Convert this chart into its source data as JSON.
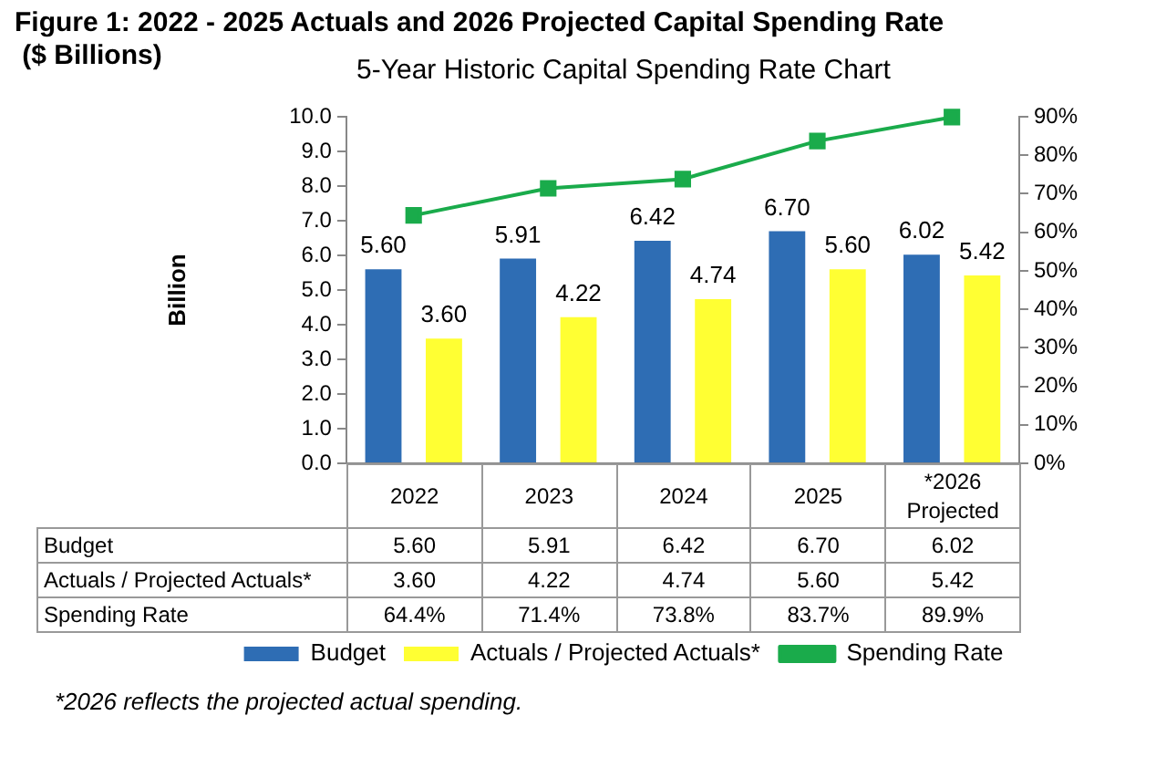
{
  "chart_data": {
    "type": "bar",
    "title": "Figure 1: 2022 - 2025 Actuals and 2026 Projected Capital Spending Rate\n ($ Billions)",
    "subtitle": "5-Year Historic Capital Spending Rate Chart",
    "ylabel": "Billion",
    "categories": [
      "2022",
      "2023",
      "2024",
      "2025",
      "*2026 Projected"
    ],
    "series": [
      {
        "name": "Budget",
        "color": "#2e6db4",
        "values": [
          5.6,
          5.91,
          6.42,
          6.7,
          6.02
        ],
        "value_labels": [
          "5.60",
          "5.91",
          "6.42",
          "6.70",
          "6.02"
        ]
      },
      {
        "name": "Actuals / Projected Actuals*",
        "color": "#ffff33",
        "values": [
          3.6,
          4.22,
          4.74,
          5.6,
          5.42
        ],
        "value_labels": [
          "3.60",
          "4.22",
          "4.74",
          "5.60",
          "5.42"
        ]
      },
      {
        "name": "Spending Rate",
        "type": "line",
        "axis": "y2",
        "color": "#1aab4b",
        "marker": "square",
        "values": [
          64.4,
          71.4,
          73.8,
          83.7,
          89.9
        ],
        "value_labels": [
          "64.4%",
          "71.4%",
          "73.8%",
          "83.7%",
          "89.9%"
        ]
      }
    ],
    "ylim": [
      0,
      10
    ],
    "yticks": [
      {
        "value": 0,
        "label": "0.0"
      },
      {
        "value": 1,
        "label": "1.0"
      },
      {
        "value": 2,
        "label": "2.0"
      },
      {
        "value": 3,
        "label": "3.0"
      },
      {
        "value": 4,
        "label": "4.0"
      },
      {
        "value": 5,
        "label": "5.0"
      },
      {
        "value": 6,
        "label": "6.0"
      },
      {
        "value": 7,
        "label": "7.0"
      },
      {
        "value": 8,
        "label": "8.0"
      },
      {
        "value": 9,
        "label": "9.0"
      },
      {
        "value": 10,
        "label": "10.0"
      }
    ],
    "y2lim": [
      0,
      90
    ],
    "y2ticks": [
      {
        "value": 0,
        "label": "0%"
      },
      {
        "value": 10,
        "label": "10%"
      },
      {
        "value": 20,
        "label": "20%"
      },
      {
        "value": 30,
        "label": "30%"
      },
      {
        "value": 40,
        "label": "40%"
      },
      {
        "value": 50,
        "label": "50%"
      },
      {
        "value": 60,
        "label": "60%"
      },
      {
        "value": 70,
        "label": "70%"
      },
      {
        "value": 80,
        "label": "80%"
      },
      {
        "value": 90,
        "label": "90%"
      }
    ],
    "grid": false,
    "legend": "bottom",
    "annotations": [
      "*2026 reflects the projected actual spending."
    ]
  }
}
